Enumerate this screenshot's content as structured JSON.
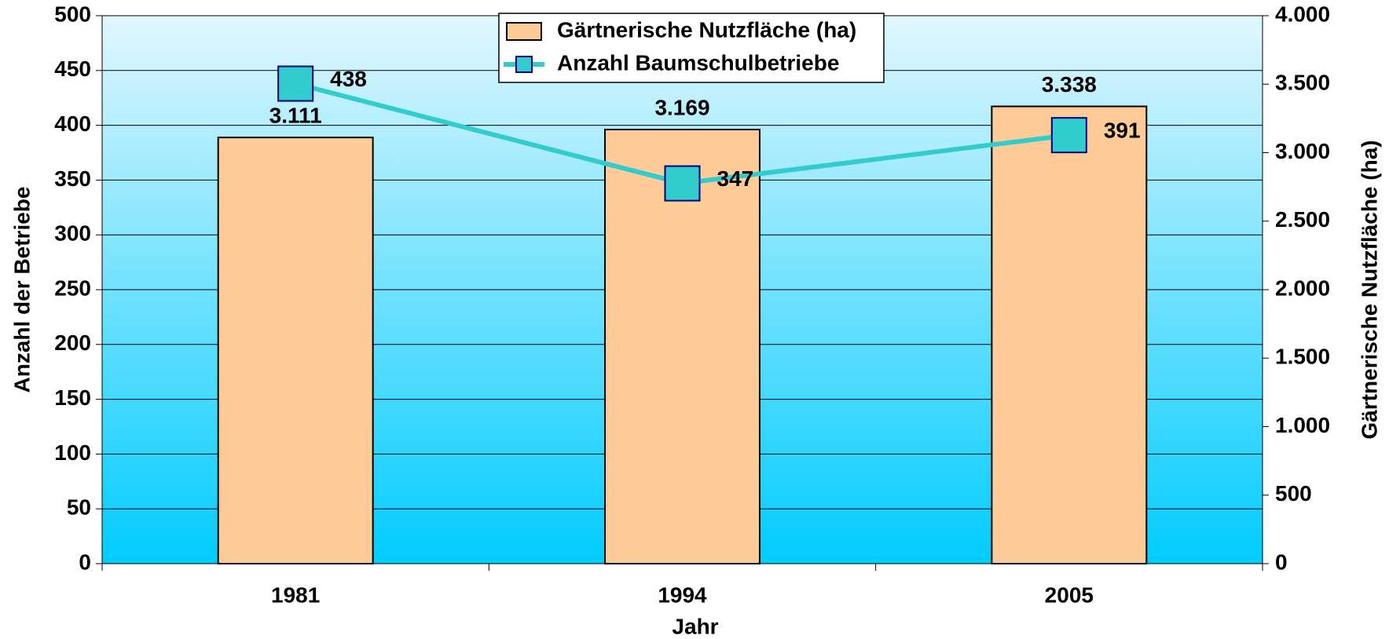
{
  "chart_data": {
    "type": "bar",
    "x_label": "Jahr",
    "y_label": "Anzahl der Betriebe",
    "y2_label": "Gärtnerische Nutzfläche (ha)",
    "categories": [
      "1981",
      "1994",
      "2005"
    ],
    "series": [
      {
        "name": "Gärtnerische Nutzfläche (ha)",
        "type": "bar",
        "axis": "y2",
        "color": "#ffcc99",
        "values": [
          3111,
          3169,
          3338
        ],
        "value_labels": [
          "3.111",
          "3.169",
          "3.338"
        ]
      },
      {
        "name": "Anzahl Baumschulbetriebe",
        "type": "line",
        "color": "#33cccc",
        "marker_edge": "#000080",
        "values": [
          438,
          347,
          391
        ]
      }
    ],
    "ylim": [
      0,
      500
    ],
    "yticks": [
      0,
      50,
      100,
      150,
      200,
      250,
      300,
      350,
      400,
      450,
      500
    ],
    "y2lim": [
      0,
      4000
    ],
    "y2ticks": [
      0,
      500,
      {
        "value": 1000,
        "label": "1.000"
      },
      {
        "value": 1500,
        "label": "1.500"
      },
      {
        "value": 2000,
        "label": "2.000"
      },
      {
        "value": 2500,
        "label": "2.500"
      },
      {
        "value": 3000,
        "label": "3.000"
      },
      {
        "value": 3500,
        "label": "3.500"
      },
      {
        "value": 4000,
        "label": "4.000"
      }
    ],
    "grid": true,
    "legend": "top"
  }
}
